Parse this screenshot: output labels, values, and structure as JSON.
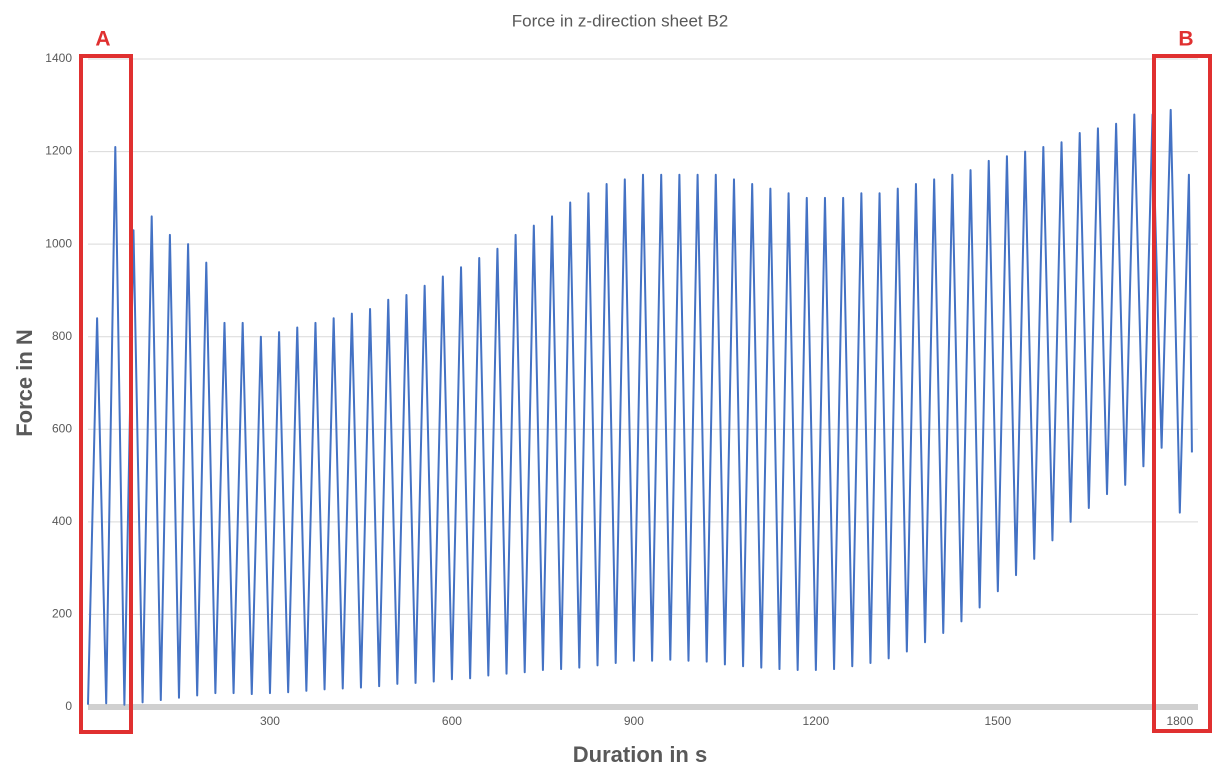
{
  "chart_data": {
    "type": "line",
    "title": "Force in z-direction sheet B2",
    "x_label": "Duration in s",
    "y_label": "Force in N",
    "annotations": [
      "A",
      "B"
    ],
    "x": [
      0,
      15,
      30,
      45,
      60,
      75,
      90,
      105,
      120,
      135,
      150,
      165,
      180,
      195,
      210,
      225,
      240,
      255,
      270,
      285,
      300,
      315,
      330,
      345,
      360,
      375,
      390,
      405,
      420,
      435,
      450,
      465,
      480,
      495,
      510,
      525,
      540,
      555,
      570,
      585,
      600,
      615,
      630,
      645,
      660,
      675,
      690,
      705,
      720,
      735,
      750,
      765,
      780,
      795,
      810,
      825,
      840,
      855,
      870,
      885,
      900,
      915,
      930,
      945,
      960,
      975,
      990,
      1005,
      1020,
      1035,
      1050,
      1065,
      1080,
      1095,
      1110,
      1125,
      1140,
      1155,
      1170,
      1185,
      1200,
      1215,
      1230,
      1245,
      1260,
      1275,
      1290,
      1305,
      1320,
      1335,
      1350,
      1365,
      1380,
      1395,
      1410,
      1425,
      1440,
      1455,
      1470,
      1485,
      1500,
      1515,
      1530,
      1545,
      1560,
      1575,
      1590,
      1605,
      1620,
      1635,
      1650,
      1665,
      1680,
      1695,
      1710,
      1725,
      1740,
      1755,
      1770,
      1785,
      1800,
      1815,
      1820
    ],
    "series": [
      {
        "color": "#4472c4",
        "values": [
          5,
          840,
          8,
          1210,
          5,
          1030,
          10,
          1060,
          15,
          1020,
          20,
          1000,
          25,
          960,
          30,
          830,
          30,
          830,
          28,
          800,
          30,
          810,
          32,
          820,
          35,
          830,
          38,
          840,
          40,
          850,
          42,
          860,
          45,
          880,
          50,
          890,
          52,
          910,
          55,
          930,
          60,
          950,
          62,
          970,
          68,
          990,
          72,
          1020,
          75,
          1040,
          80,
          1060,
          82,
          1090,
          85,
          1110,
          90,
          1130,
          95,
          1140,
          100,
          1150,
          100,
          1150,
          102,
          1150,
          100,
          1150,
          98,
          1150,
          92,
          1140,
          88,
          1130,
          85,
          1120,
          82,
          1110,
          80,
          1100,
          80,
          1100,
          82,
          1100,
          88,
          1110,
          95,
          1110,
          105,
          1120,
          120,
          1130,
          140,
          1140,
          160,
          1150,
          185,
          1160,
          215,
          1180,
          250,
          1190,
          285,
          1200,
          320,
          1210,
          360,
          1220,
          400,
          1240,
          430,
          1250,
          460,
          1260,
          480,
          1280,
          520,
          1280,
          560,
          1290,
          420,
          1150,
          550
        ]
      }
    ],
    "xlim": [
      0,
      1830
    ],
    "ylim": [
      0,
      1400
    ],
    "xticks": [
      300,
      600,
      900,
      1200,
      1500,
      1800
    ],
    "yticks": [
      0,
      200,
      400,
      600,
      800,
      1000,
      1200,
      1400
    ],
    "grid": true
  }
}
